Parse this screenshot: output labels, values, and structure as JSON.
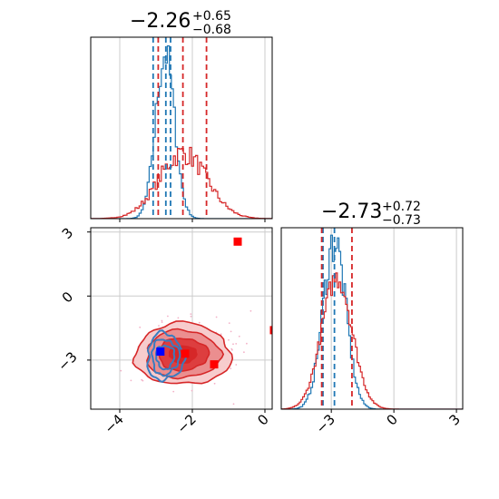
{
  "chart_data": [
    {
      "panel": "marginal-1",
      "type": "histogram",
      "title": {
        "value": "−2.26",
        "plus": "+0.65",
        "minus": "−0.68"
      },
      "xlim": [
        -4.8,
        0.2
      ],
      "grid": true,
      "series": [
        {
          "color": "#1f77b4",
          "center": -2.75,
          "sigma": 0.26,
          "quantile_lines": [
            -3.08,
            -2.73,
            -2.6
          ]
        },
        {
          "color": "#d62728",
          "center": -2.26,
          "sigma": 0.66,
          "quantile_lines": [
            -2.94,
            -2.26,
            -1.61
          ]
        }
      ]
    },
    {
      "panel": "marginal-2",
      "type": "histogram",
      "title": {
        "value": "−2.73",
        "plus": "+0.72",
        "minus": "−0.73"
      },
      "xlim": [
        -5.4,
        3.3
      ],
      "xticks": [
        -3,
        0,
        3
      ],
      "xtick_labels": [
        "−3",
        "0",
        "3"
      ],
      "grid": true,
      "series": [
        {
          "color": "#1f77b4",
          "center": -2.85,
          "sigma": 0.55,
          "quantile_lines": [
            -3.4,
            -2.85
          ]
        },
        {
          "color": "#d62728",
          "center": -2.73,
          "sigma": 0.73,
          "quantile_lines": [
            -3.46,
            -2.01
          ]
        }
      ]
    },
    {
      "panel": "joint",
      "type": "contour",
      "xlim": [
        -4.8,
        0.2
      ],
      "ylim": [
        -5.3,
        3.2
      ],
      "xticks": [
        -4,
        -2,
        0
      ],
      "xtick_labels": [
        "−4",
        "−2",
        "0"
      ],
      "yticks": [
        3,
        0,
        -3
      ],
      "ytick_labels": [
        "3",
        "0",
        "−3"
      ],
      "grid": true,
      "series": [
        {
          "name": "",
          "color": "#d62728",
          "center": [
            -2.26,
            -2.73
          ],
          "spread": [
            0.66,
            0.72
          ]
        },
        {
          "name": "",
          "color": "#1f77b4",
          "center": [
            -2.75,
            -2.85
          ],
          "spread": [
            0.25,
            0.55
          ]
        }
      ],
      "markers": [
        {
          "x": -0.75,
          "y": 2.55,
          "color": "#ff0000"
        },
        {
          "x": -2.88,
          "y": -2.6,
          "color": "#0000ff"
        },
        {
          "x": -2.2,
          "y": -2.7,
          "color": "#ff0000"
        },
        {
          "x": -1.4,
          "y": -3.2,
          "color": "#ff0000"
        },
        {
          "x": 0.25,
          "y": -1.6,
          "color": "#ff0000"
        }
      ]
    }
  ]
}
